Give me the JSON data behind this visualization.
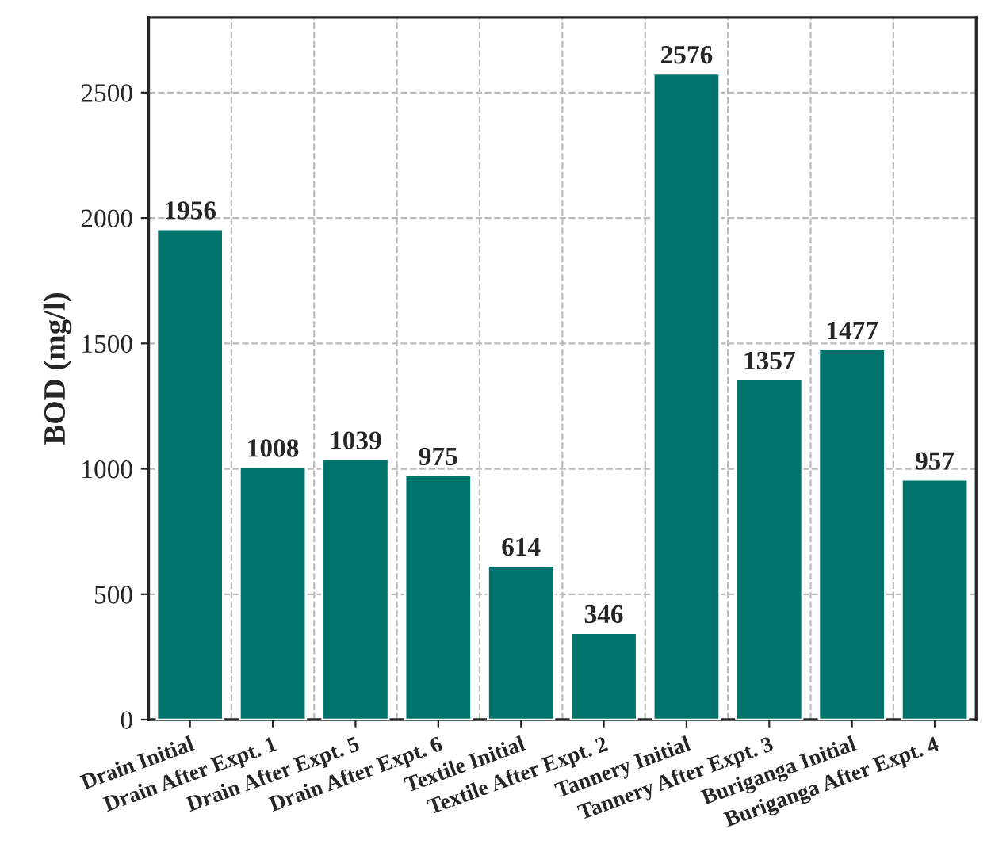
{
  "chart_data": {
    "type": "bar",
    "ylabel": "BOD (mg/l)",
    "categories": [
      "Drain Initial",
      "Drain After Expt. 1",
      "Drain After Expt. 5",
      "Drain After Expt. 6",
      "Textile Initial",
      "Textile After Expt. 2",
      "Tannery Initial",
      "Tannery After Expt. 3",
      "Buriganga Initial",
      "Buriganga After Expt. 4"
    ],
    "values": [
      1956,
      1008,
      1039,
      975,
      614,
      346,
      2576,
      1357,
      1477,
      957
    ],
    "color": "#00736d",
    "ylim": [
      0,
      2800
    ],
    "yticks": [
      0,
      500,
      1000,
      1500,
      2000,
      2500
    ],
    "grid": true,
    "data_labels": true
  }
}
